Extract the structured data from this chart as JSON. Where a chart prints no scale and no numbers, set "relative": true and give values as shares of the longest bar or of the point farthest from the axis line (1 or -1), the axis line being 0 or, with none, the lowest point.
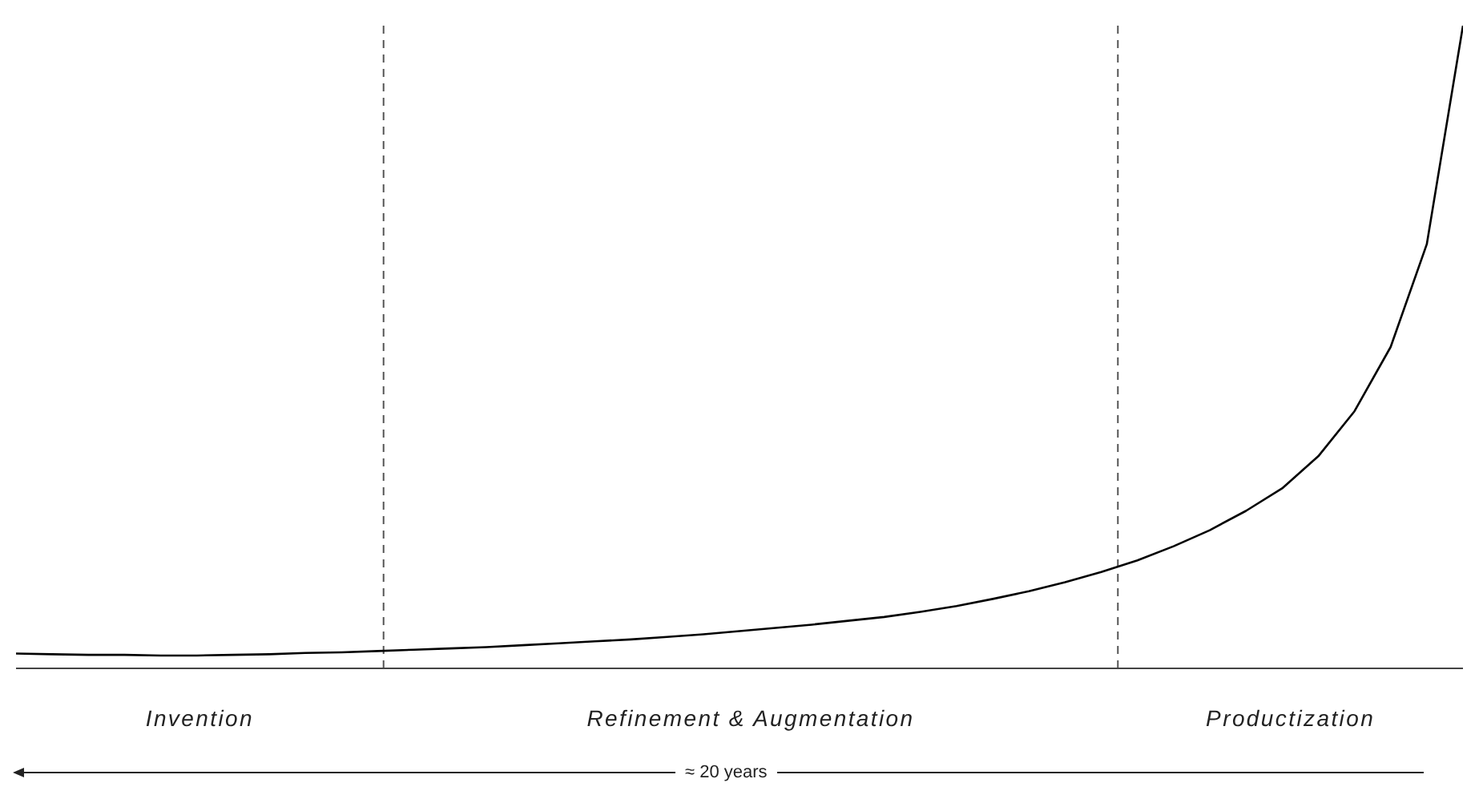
{
  "chart_data": {
    "type": "line",
    "relative": true,
    "marker": "none",
    "line_style": "solid",
    "categories": [
      null,
      null,
      null,
      null,
      null,
      null,
      null,
      null,
      null,
      null,
      null,
      null,
      null,
      null,
      null,
      null,
      null,
      null,
      null,
      null,
      null,
      null,
      null,
      null,
      null,
      null,
      null,
      null,
      null,
      null,
      null,
      null,
      null,
      null,
      null,
      null,
      null,
      null,
      null,
      null,
      null
    ],
    "series": [
      {
        "color": "#000000",
        "values": [
          0.023,
          0.022,
          0.021,
          0.021,
          0.02,
          0.02,
          0.021,
          0.022,
          0.024,
          0.025,
          0.027,
          0.029,
          0.031,
          0.033,
          0.036,
          0.039,
          0.042,
          0.045,
          0.049,
          0.053,
          0.058,
          0.063,
          0.068,
          0.074,
          0.08,
          0.088,
          0.097,
          0.108,
          0.12,
          0.134,
          0.15,
          0.168,
          0.19,
          0.215,
          0.245,
          0.28,
          0.33,
          0.4,
          0.5,
          0.66,
          1
        ]
      }
    ],
    "annotations": [
      "Invention",
      "Refinement & Augmentation",
      "Productization",
      "≈ 20 years"
    ]
  }
}
